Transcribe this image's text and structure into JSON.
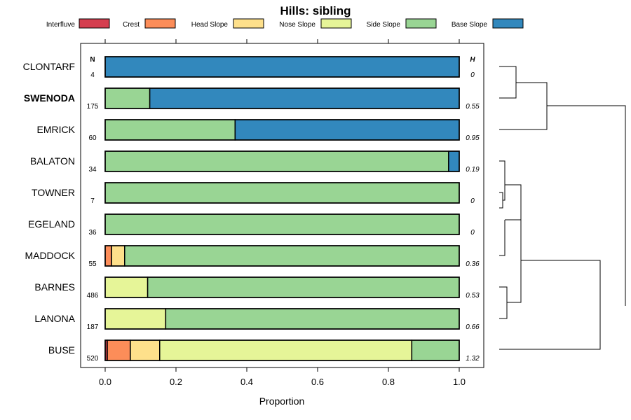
{
  "chart_data": {
    "type": "bar",
    "stacked": true,
    "orientation": "horizontal",
    "title": "Hills: sibling",
    "xlabel": "Proportion",
    "ylabel": "",
    "xlim": [
      -0.07,
      1.07
    ],
    "x_ticks": [
      "0.0",
      "0.2",
      "0.4",
      "0.6",
      "0.8",
      "1.0"
    ],
    "x_tick_values": [
      0,
      0.2,
      0.4,
      0.6,
      0.8,
      1.0
    ],
    "legend_position": "top",
    "n_header": "N",
    "h_header": "H",
    "components": [
      {
        "name": "Interfluve",
        "color": "#d53e4f"
      },
      {
        "name": "Crest",
        "color": "#fc8d59"
      },
      {
        "name": "Head Slope",
        "color": "#fee08b"
      },
      {
        "name": "Nose Slope",
        "color": "#e6f598"
      },
      {
        "name": "Side Slope",
        "color": "#99d594"
      },
      {
        "name": "Base Slope",
        "color": "#3288bd"
      }
    ],
    "rows": [
      {
        "name": "CLONTARF",
        "bold": false,
        "n": "4",
        "h": "0",
        "values": [
          0,
          0,
          0,
          0,
          0,
          1.0
        ]
      },
      {
        "name": "SWENODA",
        "bold": true,
        "n": "175",
        "h": "0.55",
        "values": [
          0,
          0,
          0,
          0,
          0.126,
          0.874
        ]
      },
      {
        "name": "EMRICK",
        "bold": false,
        "n": "60",
        "h": "0.95",
        "values": [
          0,
          0,
          0,
          0,
          0.367,
          0.633
        ]
      },
      {
        "name": "BALATON",
        "bold": false,
        "n": "34",
        "h": "0.19",
        "values": [
          0,
          0,
          0,
          0,
          0.97,
          0.03
        ]
      },
      {
        "name": "TOWNER",
        "bold": false,
        "n": "7",
        "h": "0",
        "values": [
          0,
          0,
          0,
          0,
          1.0,
          0
        ]
      },
      {
        "name": "EGELAND",
        "bold": false,
        "n": "36",
        "h": "0",
        "values": [
          0,
          0,
          0,
          0,
          1.0,
          0
        ]
      },
      {
        "name": "MADDOCK",
        "bold": false,
        "n": "55",
        "h": "0.36",
        "values": [
          0,
          0.018,
          0.037,
          0,
          0.945,
          0
        ]
      },
      {
        "name": "BARNES",
        "bold": false,
        "n": "486",
        "h": "0.53",
        "values": [
          0,
          0,
          0,
          0.12,
          0.88,
          0
        ]
      },
      {
        "name": "LANONA",
        "bold": false,
        "n": "187",
        "h": "0.66",
        "values": [
          0,
          0,
          0,
          0.171,
          0.829,
          0
        ]
      },
      {
        "name": "BUSE",
        "bold": false,
        "n": "520",
        "h": "1.32",
        "values": [
          0.006,
          0.065,
          0.083,
          0.712,
          0.134,
          0
        ]
      }
    ]
  }
}
